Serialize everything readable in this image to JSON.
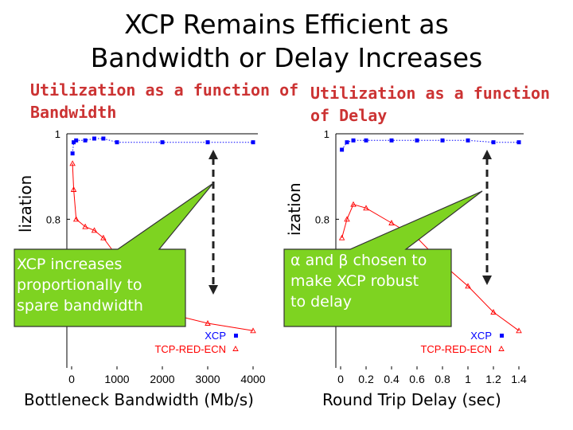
{
  "slide": {
    "title_line1": "XCP Remains Efficient as",
    "title_line2": "Bandwidth or Delay Increases",
    "colors": {
      "callout_fill": "#7ed321",
      "subtitle_red": "#cc3333",
      "xcp_blue": "#0000ff",
      "tcp_red": "#ff0000"
    }
  },
  "left": {
    "subtitle_line1": "Utilization as a function of",
    "subtitle_line2": "Bandwidth",
    "ylabel": "lization",
    "xtitle": "Bottleneck Bandwidth (Mb/s)",
    "callout_line1": "XCP increases",
    "callout_line2": "proportionally to",
    "callout_line3": "spare bandwidth"
  },
  "right": {
    "subtitle_line1": "Utilization as a function",
    "subtitle_line2": "of Delay",
    "ylabel": "ization",
    "xtitle": "Round Trip Delay (sec)",
    "callout_line1": "α and β chosen to",
    "callout_line2": "make XCP robust",
    "callout_line3": "to delay"
  },
  "chart_data": [
    {
      "type": "line",
      "xlabel": "Bottleneck Bandwidth (Mb/s)",
      "ylabel": "lization",
      "xlim": [
        0,
        4000
      ],
      "ylim": [
        0.4,
        1
      ],
      "xticks": [
        "0",
        "1000",
        "2000",
        "3000",
        "4000"
      ],
      "yticks": [
        "0.8",
        "1"
      ],
      "series": [
        {
          "name": "XCP",
          "color": "#0000ff",
          "marker": "square",
          "x": [
            20,
            45,
            100,
            300,
            500,
            700,
            1000,
            2000,
            3000,
            4000
          ],
          "y": [
            0.96,
            0.99,
            0.995,
            0.995,
            1.0,
            1.0,
            0.99,
            0.99,
            0.99,
            0.99
          ]
        },
        {
          "name": "TCP-RED-ECN",
          "color": "#ff0000",
          "marker": "triangle",
          "x": [
            20,
            45,
            100,
            300,
            500,
            700,
            1000,
            2000,
            3000,
            4000
          ],
          "y": [
            0.95,
            0.88,
            0.8,
            0.78,
            0.77,
            0.75,
            0.7,
            0.55,
            0.52,
            0.5
          ]
        }
      ],
      "legend": "bottom-right"
    },
    {
      "type": "line",
      "xlabel": "Round Trip Delay (sec)",
      "ylabel": "ization",
      "xlim": [
        0,
        1.4
      ],
      "ylim": [
        0.4,
        1
      ],
      "xticks": [
        "0",
        "0.2",
        "0.4",
        "0.6",
        "0.8",
        "1",
        "1.2",
        "1.4"
      ],
      "yticks": [
        "0.8",
        "1"
      ],
      "series": [
        {
          "name": "XCP",
          "color": "#0000ff",
          "marker": "square",
          "x": [
            0.01,
            0.05,
            0.1,
            0.2,
            0.4,
            0.6,
            0.8,
            1.0,
            1.2,
            1.4
          ],
          "y": [
            0.97,
            0.99,
            0.995,
            0.995,
            0.995,
            0.995,
            0.995,
            0.995,
            0.99,
            0.99
          ]
        },
        {
          "name": "TCP-RED-ECN",
          "color": "#ff0000",
          "marker": "triangle",
          "x": [
            0.01,
            0.05,
            0.1,
            0.2,
            0.4,
            0.6,
            0.8,
            1.0,
            1.2,
            1.4
          ],
          "y": [
            0.75,
            0.8,
            0.84,
            0.83,
            0.79,
            0.75,
            0.68,
            0.62,
            0.55,
            0.5
          ]
        }
      ],
      "legend": "bottom-right"
    }
  ]
}
